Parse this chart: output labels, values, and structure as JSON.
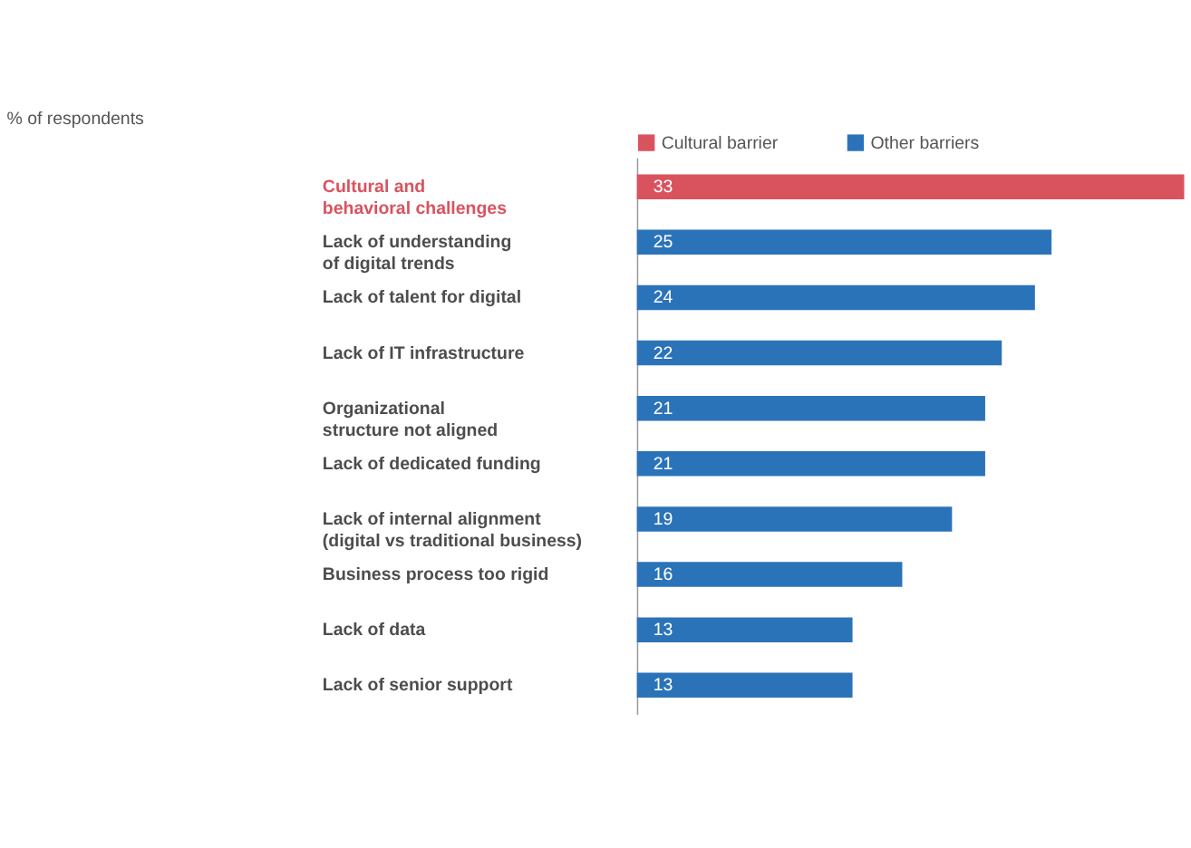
{
  "chart_data": {
    "type": "bar",
    "orientation": "horizontal",
    "title": "% of respondents",
    "categories": [
      "Cultural and\nbehavioral challenges",
      "Lack of understanding\nof digital trends",
      "Lack of talent for digital",
      "Lack of IT infrastructure",
      "Organizational\nstructure not aligned",
      "Lack of dedicated funding",
      "Lack of internal alignment\n(digital vs traditional business)",
      "Business process too rigid",
      "Lack of data",
      "Lack of senior support"
    ],
    "series": [
      {
        "name": "Cultural barrier",
        "color": "#d9535f",
        "values": [
          33,
          null,
          null,
          null,
          null,
          null,
          null,
          null,
          null,
          null
        ]
      },
      {
        "name": "Other barriers",
        "color": "#2b73b9",
        "values": [
          null,
          25,
          24,
          22,
          21,
          21,
          19,
          16,
          13,
          13
        ]
      }
    ],
    "data_labels": true,
    "legend": "top",
    "grid": false
  }
}
